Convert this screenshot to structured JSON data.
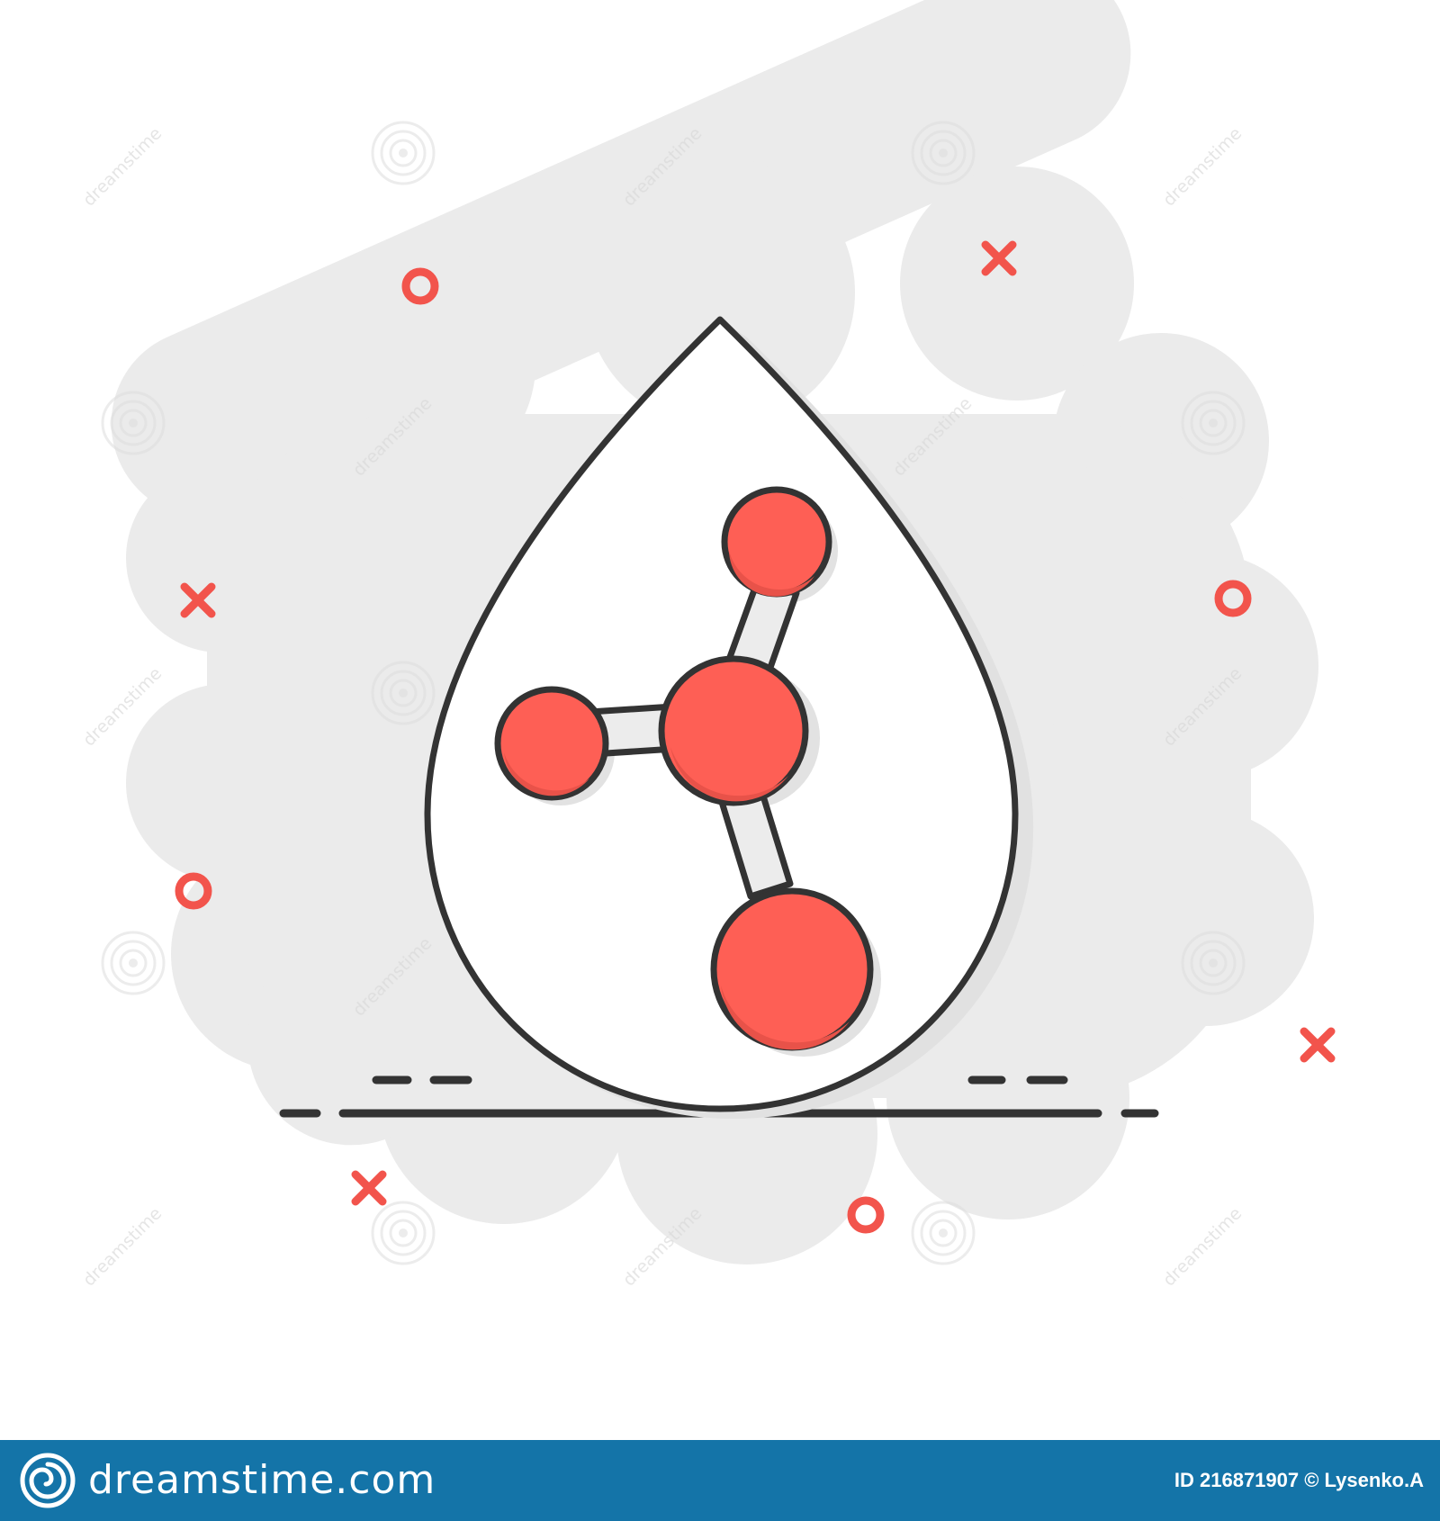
{
  "image": {
    "subject": "water-drop-molecule-icon",
    "colors": {
      "background": "#ffffff",
      "splash": "#ebebeb",
      "outline": "#333333",
      "accent": "#fe5f55",
      "bond_fill": "#ececec",
      "decor": "#f2544c",
      "footer": "#1474a8"
    },
    "icons": [
      "water-drop-icon",
      "molecule-icon"
    ],
    "decorations": [
      "circle-ring-icon",
      "cross-mark-icon",
      "dash-line"
    ]
  },
  "watermark": {
    "text": "dreamstime",
    "logo": "dreamstime-spiral-logo"
  },
  "footer": {
    "brand": "dreamstime.com",
    "image_id": "ID 216871907 © Lysenko.A"
  }
}
